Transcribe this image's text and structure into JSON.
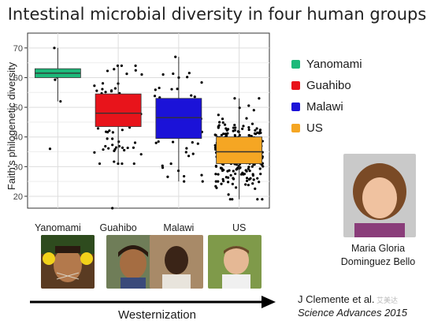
{
  "slide": {
    "title": "Intestinal microbial diversity in four human groups",
    "person_name_line1": "Maria Gloria",
    "person_name_line2": "Dominguez Bello",
    "arrow_label": "Westernization",
    "citation_line1": "J Clemente et al.",
    "citation_line2": "Science Advances 2015",
    "watermark": "艾美达"
  },
  "chart_data": {
    "type": "box",
    "title": "",
    "xlabel": "",
    "ylabel": "Faith's philogenetic diversity",
    "ylim": [
      16,
      75
    ],
    "yticks": [
      20,
      30,
      40,
      50,
      60,
      70
    ],
    "grid": true,
    "legend_position": "right",
    "categories": [
      "Yanomami",
      "Guahibo",
      "Malawi",
      "US"
    ],
    "series": [
      {
        "name": "Yanomami",
        "color": "#1db97a",
        "q1": 60,
        "median": 61.5,
        "q3": 63,
        "whisker_low": 52,
        "whisker_high": 70,
        "outliers": [
          36
        ]
      },
      {
        "name": "Guahibo",
        "color": "#e8141b",
        "q1": 43.5,
        "median": 48,
        "q3": 54.5,
        "whisker_low": 31,
        "whisker_high": 64,
        "outliers": [
          16
        ]
      },
      {
        "name": "Malawi",
        "color": "#1b12d8",
        "q1": 39.5,
        "median": 46.5,
        "q3": 53,
        "whisker_low": 25,
        "whisker_high": 67,
        "outliers": []
      },
      {
        "name": "US",
        "color": "#f5a623",
        "q1": 31,
        "median": 35,
        "q3": 40,
        "whisker_low": 19,
        "whisker_high": 53,
        "outliers": []
      }
    ]
  }
}
